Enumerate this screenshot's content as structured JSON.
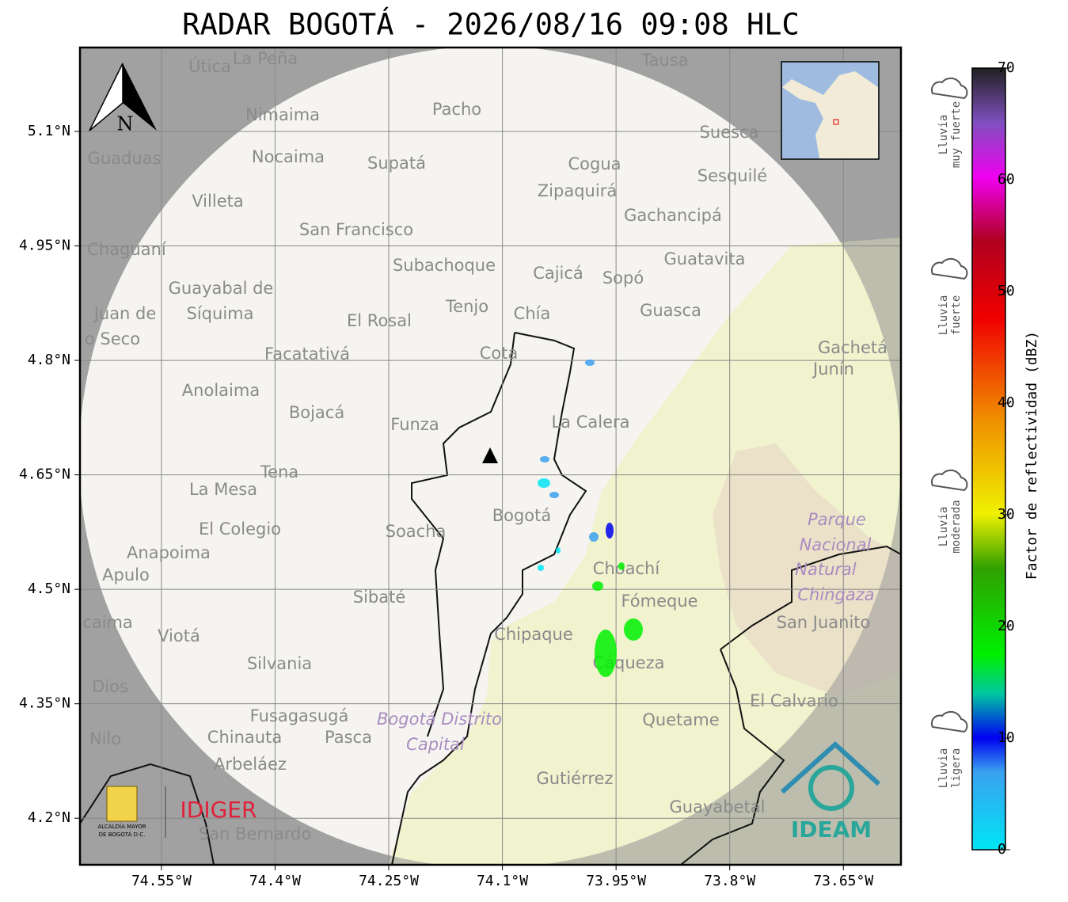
{
  "title": "RADAR BOGOTÁ - 2026/08/16 09:08 HLC",
  "map": {
    "xlim": [
      -74.6575,
      -73.574
    ],
    "ylim": [
      4.139,
      5.21
    ],
    "xticks": [
      {
        "value": -74.55,
        "label": "74.55°W"
      },
      {
        "value": -74.4,
        "label": "74.4°W"
      },
      {
        "value": -74.25,
        "label": "74.25°W"
      },
      {
        "value": -74.1,
        "label": "74.1°W"
      },
      {
        "value": -73.95,
        "label": "73.95°W"
      },
      {
        "value": -73.8,
        "label": "73.8°W"
      },
      {
        "value": -73.65,
        "label": "73.65°W"
      }
    ],
    "yticks": [
      {
        "value": 5.1,
        "label": "5.1°N"
      },
      {
        "value": 4.95,
        "label": "4.95°N"
      },
      {
        "value": 4.8,
        "label": "4.8°N"
      },
      {
        "value": 4.65,
        "label": "4.65°N"
      },
      {
        "value": 4.5,
        "label": "4.5°N"
      },
      {
        "value": 4.35,
        "label": "4.35°N"
      },
      {
        "value": 4.2,
        "label": "4.2°N"
      }
    ],
    "north": "N",
    "places": [
      "Útica",
      "La Peña",
      "Tausa",
      "Pacho",
      "Nimaima",
      "Guaduas",
      "Nocaima",
      "Supatá",
      "Cogua",
      "Suesca",
      "Sesquilé",
      "Zipaquirá",
      "Villeta",
      "Gachancipá",
      "San Francisco",
      "Chaguaní",
      "Guatavita",
      "Subachoque",
      "Cajicá",
      "Sopó",
      "Guayabal de",
      "Síquima",
      "Juan de",
      "o Seco",
      "Tenjo",
      "Chía",
      "Guasca",
      "El Rosal",
      "Facatativá",
      "Cota",
      "Gachetá",
      "Junín",
      "Anolaima",
      "Bojacá",
      "Funza",
      "La Calera",
      "Tena",
      "La Mesa",
      "Bogotá",
      "Parque",
      "El Colegio",
      "Soacha",
      "Nacional",
      "Anapoima",
      "Apulo",
      "Natural",
      "Choachí",
      "Chingaza",
      "Sibaté",
      "Fómeque",
      "San Juanito",
      "caima",
      "Viotá",
      "Chipaque",
      "Silvania",
      "Cáqueza",
      "Dios",
      "El Calvario",
      "Fusagasugá",
      "Quetame",
      "Bogotá Distrito",
      "Capital",
      "Nilo",
      "Chinauta",
      "Pasca",
      "Arbeláez",
      "Gutiérrez",
      "Guayabetal",
      "San Bernardo"
    ],
    "echo_dbz": [
      9,
      8,
      6,
      9,
      8,
      10,
      21,
      20,
      19,
      21,
      5,
      6
    ]
  },
  "colorbar": {
    "label": "Factor de reflectividad (dBZ)",
    "lim": [
      0,
      70
    ],
    "ticks": [
      0,
      10,
      20,
      30,
      40,
      50,
      60,
      70
    ],
    "rain_classes": [
      [
        "Lluvia",
        "muy fuerte"
      ],
      [
        "Lluvia",
        "fuerte"
      ],
      [
        "Lluvia",
        "moderada"
      ],
      [
        "Lluvia",
        "ligera"
      ]
    ]
  },
  "logos": {
    "alcaldia": [
      "ALCALDÍA MAYOR",
      "DE BOGOTÁ D.C."
    ],
    "idiger": "IDIGER",
    "ideam": "IDEAM"
  }
}
